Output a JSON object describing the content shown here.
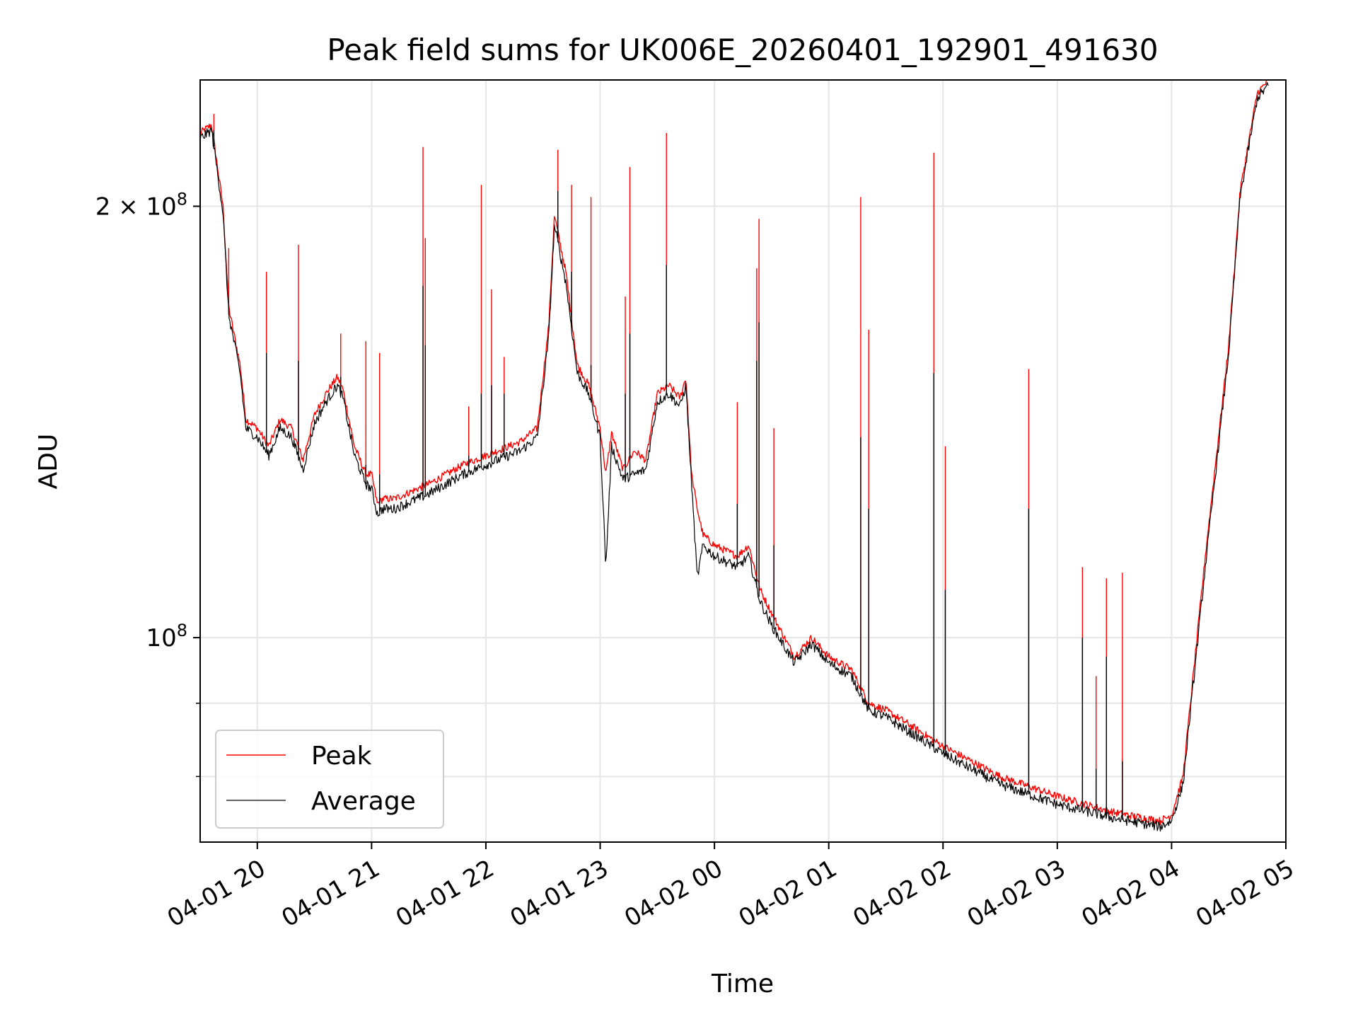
{
  "chart_data": {
    "type": "line",
    "title": "Peak field sums for UK006E_20260401_192901_491630",
    "xlabel": "Time",
    "ylabel": "ADU",
    "y_scale": "log",
    "xlim_hours_since_0401_00": [
      19.5,
      29.0
    ],
    "ylim": [
      72000000,
      245000000
    ],
    "x_ticks": [
      {
        "hours": 20,
        "label": "04-01 20"
      },
      {
        "hours": 21,
        "label": "04-01 21"
      },
      {
        "hours": 22,
        "label": "04-01 22"
      },
      {
        "hours": 23,
        "label": "04-01 23"
      },
      {
        "hours": 24,
        "label": "04-02 00"
      },
      {
        "hours": 25,
        "label": "04-02 01"
      },
      {
        "hours": 26,
        "label": "04-02 02"
      },
      {
        "hours": 27,
        "label": "04-02 03"
      },
      {
        "hours": 28,
        "label": "04-02 04"
      },
      {
        "hours": 29,
        "label": "04-02 05"
      }
    ],
    "y_ticks": [
      {
        "value": 100000000,
        "mantissa": "",
        "base": "10",
        "exp": "8"
      },
      {
        "value": 200000000,
        "mantissa": "2 × ",
        "base": "10",
        "exp": "8"
      }
    ],
    "y_minor_grid": [
      80000000,
      90000000
    ],
    "legend": {
      "position": "lower-left",
      "entries": [
        "Peak",
        "Average"
      ]
    },
    "colors": {
      "peak": "#ff0000",
      "average": "#000000",
      "grid": "#e6e6e6"
    },
    "series": [
      {
        "name": "Peak",
        "color": "#ff0000",
        "baseline_hours": [
          19.5,
          19.6,
          19.7,
          19.75,
          19.85,
          19.9,
          20.0,
          20.1,
          20.2,
          20.3,
          20.4,
          20.5,
          20.6,
          20.7,
          20.75,
          20.85,
          20.95,
          21.0,
          21.05,
          21.1,
          21.2,
          21.3,
          21.5,
          21.8,
          22.0,
          22.3,
          22.45,
          22.55,
          22.6,
          22.7,
          22.8,
          22.9,
          23.0,
          23.05,
          23.1,
          23.2,
          23.3,
          23.4,
          23.5,
          23.6,
          23.7,
          23.75,
          23.8,
          23.85,
          23.9,
          24.0,
          24.2,
          24.3,
          24.4,
          24.5,
          24.7,
          24.85,
          25.0,
          25.2,
          25.35,
          25.5,
          25.8,
          26.0,
          26.5,
          27.0,
          27.5,
          27.9,
          28.0,
          28.1,
          28.3,
          28.5,
          28.6,
          28.75,
          28.85
        ],
        "baseline_values": [
          225000000,
          228000000,
          200000000,
          170000000,
          155000000,
          142000000,
          140000000,
          136000000,
          142000000,
          140000000,
          133000000,
          143000000,
          148000000,
          152000000,
          149000000,
          136000000,
          130000000,
          130000000,
          124000000,
          125000000,
          125000000,
          126000000,
          128000000,
          132000000,
          134000000,
          137000000,
          140000000,
          165000000,
          197000000,
          180000000,
          155000000,
          150000000,
          140000000,
          130000000,
          139000000,
          131000000,
          135000000,
          133000000,
          148000000,
          150000000,
          147000000,
          152000000,
          130000000,
          123000000,
          118000000,
          116000000,
          114000000,
          116000000,
          108000000,
          104000000,
          97000000,
          100000000,
          97000000,
          95000000,
          90000000,
          89000000,
          86000000,
          84000000,
          80000000,
          77500000,
          75500000,
          74500000,
          75200000,
          80000000,
          115000000,
          160000000,
          205000000,
          240000000,
          245000000
        ],
        "spikes": [
          {
            "hours": 19.62,
            "value": 232000000
          },
          {
            "hours": 19.75,
            "value": 187000000
          },
          {
            "hours": 20.08,
            "value": 180000000
          },
          {
            "hours": 20.36,
            "value": 188000000
          },
          {
            "hours": 20.73,
            "value": 163000000
          },
          {
            "hours": 20.95,
            "value": 161000000
          },
          {
            "hours": 21.07,
            "value": 158000000
          },
          {
            "hours": 21.45,
            "value": 220000000
          },
          {
            "hours": 21.47,
            "value": 190000000
          },
          {
            "hours": 21.85,
            "value": 145000000
          },
          {
            "hours": 21.96,
            "value": 207000000
          },
          {
            "hours": 22.05,
            "value": 175000000
          },
          {
            "hours": 22.16,
            "value": 157000000
          },
          {
            "hours": 22.63,
            "value": 219000000
          },
          {
            "hours": 22.75,
            "value": 207000000
          },
          {
            "hours": 22.92,
            "value": 203000000
          },
          {
            "hours": 23.22,
            "value": 173000000
          },
          {
            "hours": 23.26,
            "value": 213000000
          },
          {
            "hours": 23.58,
            "value": 225000000
          },
          {
            "hours": 24.2,
            "value": 146000000
          },
          {
            "hours": 24.37,
            "value": 181000000
          },
          {
            "hours": 24.39,
            "value": 196000000
          },
          {
            "hours": 24.52,
            "value": 140000000
          },
          {
            "hours": 25.28,
            "value": 203000000
          },
          {
            "hours": 25.35,
            "value": 164000000
          },
          {
            "hours": 25.92,
            "value": 218000000
          },
          {
            "hours": 26.02,
            "value": 136000000
          },
          {
            "hours": 26.75,
            "value": 154000000
          },
          {
            "hours": 27.22,
            "value": 112000000
          },
          {
            "hours": 27.34,
            "value": 94000000
          },
          {
            "hours": 27.43,
            "value": 110000000
          },
          {
            "hours": 27.57,
            "value": 111000000
          }
        ]
      },
      {
        "name": "Average",
        "color": "#000000",
        "baseline_hours": [
          19.5,
          19.6,
          19.7,
          19.75,
          19.85,
          19.9,
          20.0,
          20.1,
          20.2,
          20.3,
          20.4,
          20.5,
          20.6,
          20.7,
          20.75,
          20.85,
          20.95,
          21.0,
          21.05,
          21.1,
          21.2,
          21.3,
          21.5,
          21.8,
          22.0,
          22.3,
          22.45,
          22.55,
          22.6,
          22.7,
          22.8,
          22.9,
          23.0,
          23.05,
          23.1,
          23.2,
          23.3,
          23.4,
          23.5,
          23.6,
          23.7,
          23.75,
          23.8,
          23.85,
          23.9,
          24.0,
          24.2,
          24.3,
          24.4,
          24.5,
          24.7,
          24.85,
          25.0,
          25.2,
          25.35,
          25.5,
          25.8,
          26.0,
          26.5,
          27.0,
          27.5,
          27.9,
          28.0,
          28.1,
          28.3,
          28.5,
          28.6,
          28.75,
          28.85
        ],
        "baseline_values": [
          223000000,
          226000000,
          198000000,
          168000000,
          153000000,
          140000000,
          138000000,
          134000000,
          140000000,
          138000000,
          131000000,
          141000000,
          146000000,
          150000000,
          147000000,
          134000000,
          128000000,
          127000000,
          122000000,
          123000000,
          123000000,
          124000000,
          126000000,
          130000000,
          132000000,
          135000000,
          138000000,
          162000000,
          194000000,
          177000000,
          153000000,
          148000000,
          138000000,
          112000000,
          136000000,
          129000000,
          130000000,
          131000000,
          146000000,
          148000000,
          145000000,
          150000000,
          128000000,
          110000000,
          116000000,
          114000000,
          112000000,
          114000000,
          106000000,
          102000000,
          96000000,
          99000000,
          96000000,
          94000000,
          89000000,
          88000000,
          85000000,
          83000000,
          79000000,
          76500000,
          74800000,
          73800000,
          74500000,
          79000000,
          113000000,
          158000000,
          203000000,
          238000000,
          243000000
        ],
        "spikes": [
          {
            "hours": 19.62,
            "value": 226000000
          },
          {
            "hours": 19.75,
            "value": 170000000
          },
          {
            "hours": 20.08,
            "value": 158000000
          },
          {
            "hours": 20.36,
            "value": 156000000
          },
          {
            "hours": 20.73,
            "value": 152000000
          },
          {
            "hours": 20.95,
            "value": 132000000
          },
          {
            "hours": 21.07,
            "value": 130000000
          },
          {
            "hours": 21.45,
            "value": 176000000
          },
          {
            "hours": 21.47,
            "value": 160000000
          },
          {
            "hours": 21.85,
            "value": 134000000
          },
          {
            "hours": 21.96,
            "value": 148000000
          },
          {
            "hours": 22.05,
            "value": 150000000
          },
          {
            "hours": 22.16,
            "value": 148000000
          },
          {
            "hours": 22.63,
            "value": 205000000
          },
          {
            "hours": 22.75,
            "value": 180000000
          },
          {
            "hours": 22.92,
            "value": 155000000
          },
          {
            "hours": 23.22,
            "value": 148000000
          },
          {
            "hours": 23.26,
            "value": 163000000
          },
          {
            "hours": 23.58,
            "value": 182000000
          },
          {
            "hours": 24.2,
            "value": 124000000
          },
          {
            "hours": 24.37,
            "value": 156000000
          },
          {
            "hours": 24.39,
            "value": 166000000
          },
          {
            "hours": 24.52,
            "value": 116000000
          },
          {
            "hours": 25.28,
            "value": 138000000
          },
          {
            "hours": 25.35,
            "value": 123000000
          },
          {
            "hours": 25.92,
            "value": 153000000
          },
          {
            "hours": 26.02,
            "value": 108000000
          },
          {
            "hours": 26.75,
            "value": 123000000
          },
          {
            "hours": 27.22,
            "value": 100000000
          },
          {
            "hours": 27.34,
            "value": 81000000
          },
          {
            "hours": 27.43,
            "value": 97000000
          },
          {
            "hours": 27.57,
            "value": 82000000
          }
        ]
      }
    ]
  }
}
